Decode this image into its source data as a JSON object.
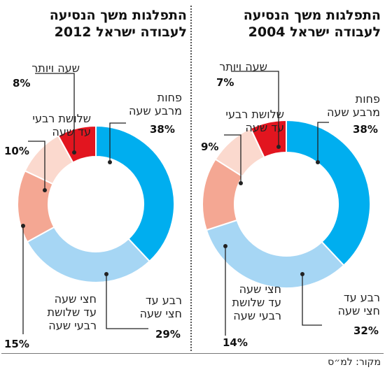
{
  "chart_data": [
    {
      "type": "donut",
      "title": "התפלגות משך הנסיעה\nלעבודה ישראל 2004",
      "categories": [
        "פחות\nמרבע שעה",
        "רבע עד\nחצי שעה",
        "חצי שעה\nעד שלושת\nרבעי שעה",
        "שלושת רבעי\nעד שעה",
        "שעה ויותר"
      ],
      "values": [
        38,
        32,
        14,
        9,
        7
      ],
      "labels": [
        "38%",
        "32%",
        "14%",
        "9%",
        "7%"
      ],
      "colors": [
        "#00aeef",
        "#a6d6f4",
        "#f4a793",
        "#fbd9ce",
        "#e2151f"
      ]
    },
    {
      "type": "donut",
      "title": "התפלגות משך הנסיעה\nלעבודה ישראל 2012",
      "categories": [
        "פחות\nמרבע שעה",
        "רבע עד\nחצי שעה",
        "חצי שעה\nעד שלושת\nרבעי שעה",
        "שלושת רבעי\nעד שעה",
        "שעה ויותר"
      ],
      "values": [
        38,
        29,
        15,
        10,
        8
      ],
      "labels": [
        "38%",
        "29%",
        "15%",
        "10%",
        "8%"
      ],
      "colors": [
        "#00aeef",
        "#a6d6f4",
        "#f4a793",
        "#fbd9ce",
        "#e2151f"
      ]
    }
  ],
  "source": "מקור: למ״ס"
}
